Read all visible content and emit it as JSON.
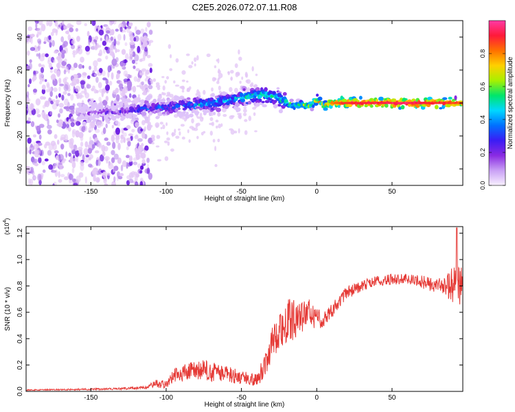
{
  "figure_title": "C2E5.2026.072.07.11.R08",
  "colors": {
    "signal": "#e53935",
    "axis": "#000000",
    "dot_light": "#e4c8f6",
    "dot_mid": "#b585ec",
    "dot_dark": "#6a1be0"
  },
  "chart_data": [
    {
      "type": "heatmap",
      "title": "",
      "xlabel": "Height of straight line (km)",
      "ylabel": "Frequency (Hz)",
      "xlim": [
        -193,
        97
      ],
      "ylim": [
        -50,
        50
      ],
      "xticks": [
        -150,
        -100,
        -50,
        0,
        50
      ],
      "yticks": [
        -40,
        -20,
        0,
        20,
        40
      ],
      "colorbar": {
        "label": "Normalized spectral amplitude",
        "range": [
          0,
          1
        ],
        "ticks": [
          0.0,
          0.2,
          0.4,
          0.6,
          0.8
        ],
        "tick_labels": [
          "0.0",
          "0.2",
          "0.4",
          "0.6",
          "0.8"
        ],
        "colormap": [
          "#f8f0ff",
          "#c9a0f5",
          "#8a2be2",
          "#3b1cf5",
          "#0070ff",
          "#00d8ff",
          "#00e66b",
          "#a8f000",
          "#ffd000",
          "#ff7000",
          "#ff1a3a",
          "#ff3aa5"
        ]
      },
      "ridge": {
        "x": [
          -150,
          -130,
          -110,
          -90,
          -70,
          -55,
          -45,
          -35,
          -25,
          -20,
          -15,
          -10,
          -5,
          0,
          5,
          10,
          20,
          40,
          60,
          80,
          95
        ],
        "freq": [
          -6,
          -5,
          -3,
          -2,
          0,
          2,
          4,
          5,
          3,
          0,
          -2,
          -1,
          -2,
          2,
          -2,
          0,
          0,
          0,
          0,
          0,
          0
        ],
        "amplitude": [
          0.15,
          0.2,
          0.3,
          0.35,
          0.4,
          0.42,
          0.45,
          0.5,
          0.45,
          0.5,
          0.55,
          0.6,
          0.6,
          0.65,
          0.7,
          0.8,
          0.9,
          0.92,
          0.95,
          0.9,
          0.85
        ]
      },
      "noise_region": {
        "x_range": [
          -193,
          -118
        ],
        "freq_range": [
          -50,
          50
        ],
        "amplitude": 0.1
      }
    },
    {
      "type": "line",
      "title": "",
      "xlabel": "Height of straight line (km)",
      "ylabel": "SNR (10 * v/v)",
      "scale_label": "(x10",
      "scale_exp": "4",
      "scale_close": ")",
      "xlim": [
        -193,
        97
      ],
      "ylim": [
        0,
        1.25
      ],
      "xticks": [
        -150,
        -100,
        -50,
        0,
        50
      ],
      "yticks": [
        0.0,
        0.2,
        0.4,
        0.6,
        0.8,
        1.0,
        1.2
      ],
      "ytick_labels": [
        "0.0",
        "0.2",
        "0.4",
        "0.6",
        "0.8",
        "1.0",
        "1.2"
      ],
      "series": [
        {
          "name": "SNR",
          "x": [
            -193,
            -160,
            -130,
            -112,
            -108,
            -100,
            -95,
            -85,
            -75,
            -65,
            -55,
            -48,
            -42,
            -38,
            -35,
            -30,
            -25,
            -22,
            -20,
            -15,
            -10,
            -5,
            0,
            5,
            10,
            15,
            20,
            30,
            40,
            50,
            60,
            70,
            80,
            85,
            90,
            95,
            97
          ],
          "mean": [
            0.01,
            0.015,
            0.02,
            0.03,
            0.06,
            0.05,
            0.12,
            0.15,
            0.16,
            0.14,
            0.12,
            0.1,
            0.09,
            0.12,
            0.2,
            0.35,
            0.48,
            0.5,
            0.52,
            0.55,
            0.56,
            0.6,
            0.55,
            0.55,
            0.62,
            0.68,
            0.75,
            0.8,
            0.84,
            0.85,
            0.85,
            0.83,
            0.8,
            0.8,
            0.8,
            0.82,
            0.8
          ],
          "jitter": [
            0.004,
            0.006,
            0.008,
            0.01,
            0.03,
            0.03,
            0.06,
            0.07,
            0.08,
            0.07,
            0.06,
            0.05,
            0.05,
            0.06,
            0.1,
            0.12,
            0.15,
            0.18,
            0.18,
            0.15,
            0.12,
            0.1,
            0.08,
            0.06,
            0.06,
            0.05,
            0.05,
            0.04,
            0.04,
            0.04,
            0.04,
            0.05,
            0.06,
            0.08,
            0.14,
            0.16,
            0.1
          ],
          "peak": {
            "x": 93,
            "value": 1.24
          }
        }
      ]
    }
  ]
}
